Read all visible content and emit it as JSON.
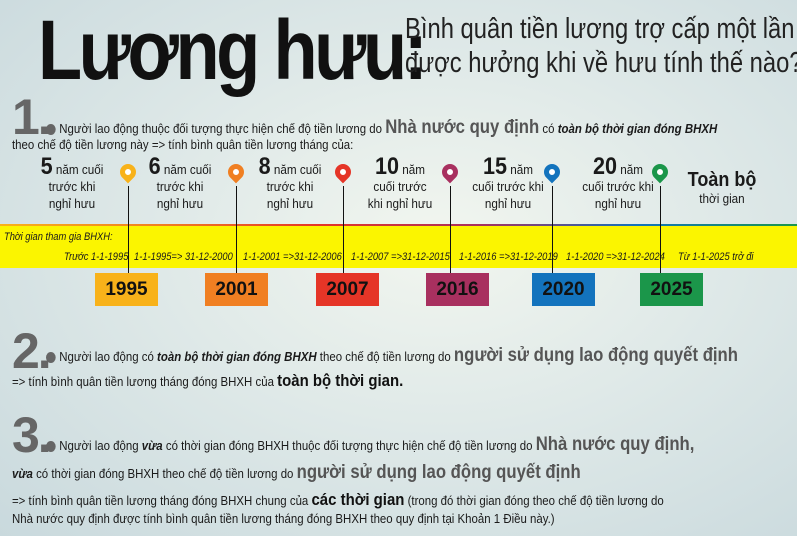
{
  "title": "Lương hưu:",
  "subtitle": [
    "Bình quân tiền lương trợ cấp một lần",
    "được hưởng khi về hưu tính thế nào?"
  ],
  "s1": {
    "num": "1.",
    "t1": "Người lao động thuộc đối tượng thực hiện chế độ tiền lương do ",
    "hl": "Nhà nước quy định",
    "t2": " có ",
    "bi": "toàn bộ thời gian đóng BHXH",
    "t3": "theo chế độ tiền lương này => tính bình quân tiền lương tháng của:"
  },
  "timeline": {
    "labels": [
      {
        "n": "5",
        "a": " năm cuối",
        "b": "trước khi",
        "c": "nghỉ hưu"
      },
      {
        "n": "6",
        "a": " năm cuối",
        "b": "trước khi",
        "c": "nghỉ hưu"
      },
      {
        "n": "8",
        "a": " năm cuối",
        "b": "trước khi",
        "c": "nghỉ hưu"
      },
      {
        "n": "10",
        "a": " năm",
        "b": "cuối trước",
        "c": "khi nghỉ hưu"
      },
      {
        "n": "15",
        "a": " năm",
        "b": "cuối trước khi",
        "c": "nghỉ hưu"
      },
      {
        "n": "20",
        "a": " năm",
        "b": "cuối trước khi",
        "c": "nghỉ hưu"
      },
      {
        "n": "Toàn bộ",
        "a": "",
        "b": "thời gian",
        "c": ""
      }
    ],
    "band_label": "Thời gian tham gia BHXH:",
    "periods": [
      "Trước 1-1-1995",
      "1-1-1995=> 31-12-2000",
      "1-1-2001 =>31-12-2006",
      "1-1-2007 =>31-12-2015",
      "1-1-2016 =>31-12-2019",
      "1-1-2020 =>31-12-2024",
      "Từ 1-1-2025 trở đi"
    ],
    "years": [
      "1995",
      "2001",
      "2007",
      "2016",
      "2020",
      "2025"
    ],
    "colors": [
      "#f8b21a",
      "#f07f22",
      "#e53527",
      "#a8305f",
      "#1373bd",
      "#1b964a"
    ]
  },
  "s2": {
    "num": "2.",
    "t1": "Người lao động có ",
    "bi": "toàn bộ thời gian đóng BHXH",
    "t2": " theo chế độ tiền lương do ",
    "hl": "người sử dụng lao động quyết định",
    "t3": "=> tính bình quân tiền lương tháng đóng BHXH của ",
    "hl2": "toàn bộ thời gian."
  },
  "s3": {
    "num": "3.",
    "t1": "Người lao động ",
    "bi1": "vừa",
    "t2": " có thời gian đóng BHXH thuộc đối tượng thực hiện chế độ tiền lương do ",
    "hl1": "Nhà nước quy định,",
    "bi2": "vừa",
    "t3": " có thời gian đóng BHXH theo chế độ tiền lương do ",
    "hl2": "người sử dụng lao động quyết định",
    "t4": "=> tính bình quân tiền lương tháng đóng BHXH chung của ",
    "hl3": "các thời gian",
    "t5": " (trong đó thời gian đóng theo chế độ tiền lương do",
    "t6": "Nhà nước quy định được tính bình quân tiền lương tháng đóng BHXH theo quy định tại Khoản 1 Điều này.)"
  }
}
